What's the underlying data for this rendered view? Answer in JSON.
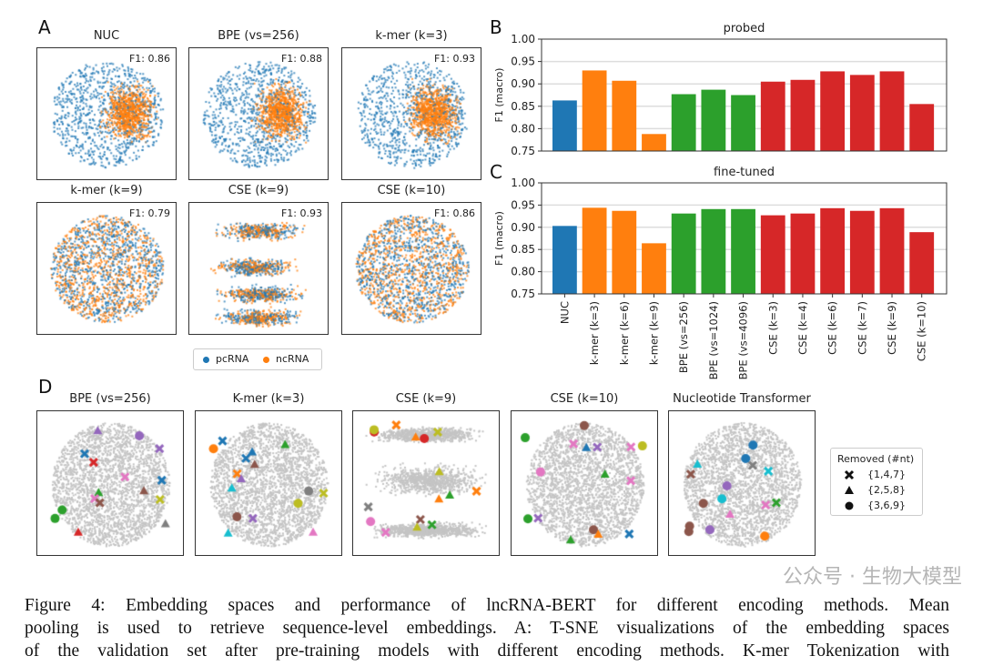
{
  "panel_labels": {
    "a": "A",
    "b": "B",
    "c": "C",
    "d": "D"
  },
  "panel_a": {
    "plots": [
      {
        "title": "NUC",
        "f1": "F1: 0.86"
      },
      {
        "title": "BPE (vs=256)",
        "f1": "F1: 0.88"
      },
      {
        "title": "k-mer (k=3)",
        "f1": "F1: 0.93"
      },
      {
        "title": "k-mer (k=9)",
        "f1": "F1: 0.79"
      },
      {
        "title": "CSE (k=9)",
        "f1": "F1: 0.93"
      },
      {
        "title": "CSE (k=10)",
        "f1": "F1: 0.86"
      }
    ],
    "legend": [
      {
        "label": "pcRNA",
        "color": "#1f77b4"
      },
      {
        "label": "ncRNA",
        "color": "#ff7f0e"
      }
    ]
  },
  "chart_data": [
    {
      "type": "bar",
      "title": "probed",
      "ylabel": "F1 (macro)",
      "ylim": [
        0.75,
        1.0
      ],
      "yticks": [
        "0.75",
        "0.80",
        "0.85",
        "0.90",
        "0.95",
        "1.00"
      ],
      "grid": true,
      "categories": [
        "NUC",
        "k-mer (k=3)",
        "k-mer (k=6)",
        "k-mer (k=9)",
        "BPE (vs=256)",
        "BPE (vs=1024)",
        "BPE (vs=4096)",
        "CSE (k=3)",
        "CSE (k=4)",
        "CSE (k=6)",
        "CSE (k=7)",
        "CSE (k=9)",
        "CSE (k=10)"
      ],
      "values": [
        0.863,
        0.93,
        0.907,
        0.788,
        0.877,
        0.887,
        0.875,
        0.905,
        0.909,
        0.928,
        0.92,
        0.928,
        0.855
      ],
      "colors": [
        "#1f77b4",
        "#ff7f0e",
        "#ff7f0e",
        "#ff7f0e",
        "#2ca02c",
        "#2ca02c",
        "#2ca02c",
        "#d62728",
        "#d62728",
        "#d62728",
        "#d62728",
        "#d62728",
        "#d62728"
      ]
    },
    {
      "type": "bar",
      "title": "fine-tuned",
      "ylabel": "F1 (macro)",
      "ylim": [
        0.75,
        1.0
      ],
      "yticks": [
        "0.75",
        "0.80",
        "0.85",
        "0.90",
        "0.95",
        "1.00"
      ],
      "grid": true,
      "categories": [
        "NUC",
        "k-mer (k=3)",
        "k-mer (k=6)",
        "k-mer (k=9)",
        "BPE (vs=256)",
        "BPE (vs=1024)",
        "BPE (vs=4096)",
        "CSE (k=3)",
        "CSE (k=4)",
        "CSE (k=6)",
        "CSE (k=7)",
        "CSE (k=9)",
        "CSE (k=10)"
      ],
      "values": [
        0.903,
        0.944,
        0.937,
        0.864,
        0.931,
        0.941,
        0.941,
        0.927,
        0.931,
        0.943,
        0.937,
        0.943,
        0.889
      ],
      "colors": [
        "#1f77b4",
        "#ff7f0e",
        "#ff7f0e",
        "#ff7f0e",
        "#2ca02c",
        "#2ca02c",
        "#2ca02c",
        "#d62728",
        "#d62728",
        "#d62728",
        "#d62728",
        "#d62728",
        "#d62728"
      ]
    }
  ],
  "panel_d": {
    "plots": [
      {
        "title": "BPE (vs=256)"
      },
      {
        "title": "K-mer (k=3)"
      },
      {
        "title": "CSE (k=9)"
      },
      {
        "title": "CSE (k=10)"
      },
      {
        "title": "Nucleotide Transformer"
      }
    ],
    "legend_title": "Removed (#nt)",
    "legend": [
      {
        "marker": "cross",
        "label": "{1,4,7}"
      },
      {
        "marker": "triangle",
        "label": "{2,5,8}"
      },
      {
        "marker": "circle",
        "label": "{3,6,9}"
      }
    ]
  },
  "caption": {
    "lines": [
      "Figure 4: Embedding spaces and performance of lncRNA-BERT for different encoding methods. Mean",
      "pooling is used to retrieve sequence-level embeddings. A: T-SNE visualizations of the embedding spaces",
      "of the validation set after pre-training models with different encoding methods. K-mer Tokenization with"
    ]
  },
  "watermark": "公众号 · 生物大模型"
}
